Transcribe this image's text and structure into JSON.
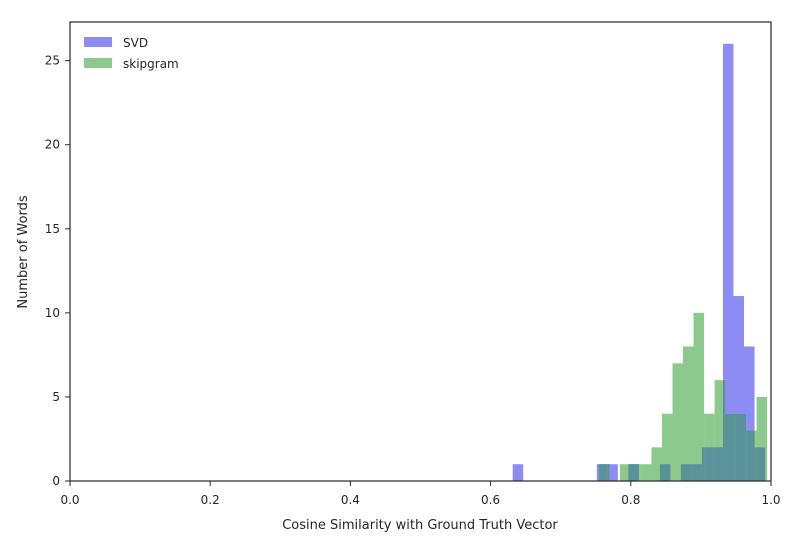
{
  "chart_data": {
    "type": "histogram",
    "xlabel": "Cosine Similarity with Ground Truth Vector",
    "ylabel": "Number of Words",
    "xlim": [
      0.0,
      1.0
    ],
    "ylim": [
      0,
      27.3
    ],
    "x_ticks": [
      "0.0",
      "0.2",
      "0.4",
      "0.6",
      "0.8",
      "1.0"
    ],
    "x_tick_values": [
      0.0,
      0.2,
      0.4,
      0.6,
      0.8,
      1.0
    ],
    "y_ticks": [
      "0",
      "5",
      "10",
      "15",
      "20",
      "25"
    ],
    "y_tick_values": [
      0,
      5,
      10,
      15,
      20,
      25
    ],
    "grid": false,
    "legend_position": "top-left",
    "overlap_color": "#5a9299",
    "series": [
      {
        "name": "SVD",
        "color": "#8c8cf4",
        "bin_edges": [
          0.6315,
          0.6465,
          0.6615,
          0.6765,
          0.6915,
          0.7065,
          0.7215,
          0.7365,
          0.7515,
          0.7665,
          0.7815,
          0.7965,
          0.8115,
          0.8265,
          0.8415,
          0.8565,
          0.8715,
          0.8865,
          0.9015,
          0.9165,
          0.9315,
          0.9465,
          0.9615,
          0.9765,
          0.9915
        ],
        "counts": [
          1,
          0,
          0,
          0,
          0,
          0,
          0,
          0,
          1,
          1,
          0,
          1,
          0,
          0,
          1,
          0,
          1,
          1,
          2,
          2,
          26,
          11,
          8,
          2
        ]
      },
      {
        "name": "skipgram",
        "color": "#8cc98c",
        "bin_edges": [
          0.7545,
          0.7695,
          0.7845,
          0.7995,
          0.8145,
          0.8295,
          0.8445,
          0.8595,
          0.8745,
          0.8895,
          0.9045,
          0.9195,
          0.9345,
          0.9495,
          0.9645,
          0.9795,
          0.9945
        ],
        "counts": [
          1,
          0,
          1,
          1,
          1,
          2,
          4,
          7,
          8,
          10,
          4,
          6,
          4,
          4,
          3,
          5
        ]
      }
    ]
  }
}
